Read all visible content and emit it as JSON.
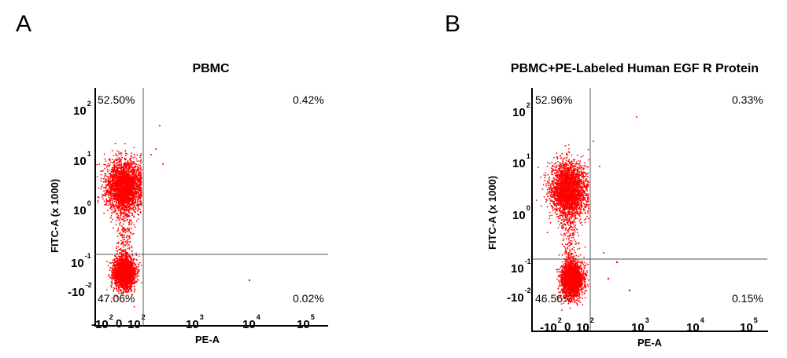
{
  "chart_data": [
    {
      "type": "scatter",
      "panel_label": "A",
      "title": "PBMC",
      "xlabel": "PE-A",
      "ylabel": "FITC-A (x 1000)",
      "xticks": [
        {
          "base": "-10",
          "exp": "2"
        },
        {
          "base": "0",
          "exp": ""
        },
        {
          "base": "10",
          "exp": "2"
        },
        {
          "base": "10",
          "exp": "3"
        },
        {
          "base": "10",
          "exp": "4"
        },
        {
          "base": "10",
          "exp": "5"
        }
      ],
      "yticks": [
        {
          "base": "10",
          "exp": "2"
        },
        {
          "base": "10",
          "exp": "1"
        },
        {
          "base": "10",
          "exp": "0"
        },
        {
          "base": "10",
          "exp": "-1"
        },
        {
          "base": "-10",
          "exp": "-2"
        }
      ],
      "quadrants": {
        "upper_left": "52.50%",
        "upper_right": "0.42%",
        "lower_left": "47.06%",
        "lower_right": "0.02%"
      },
      "gate": {
        "x": 100,
        "y": 0.1
      },
      "populations": [
        {
          "name": "upper-left",
          "fraction": 0.525,
          "x_center": 25,
          "y_center": 2.5
        },
        {
          "name": "lower-left",
          "fraction": 0.4706,
          "x_center": 10,
          "y_center": -0.015
        },
        {
          "name": "upper-right",
          "fraction": 0.0042
        },
        {
          "name": "lower-right",
          "fraction": 0.0002
        }
      ],
      "dot_color": "#ff0000"
    },
    {
      "type": "scatter",
      "panel_label": "B",
      "title": "PBMC+PE-Labeled Human EGF R Protein",
      "xlabel": "PE-A",
      "ylabel": "FITC-A (x 1000)",
      "xticks": [
        {
          "base": "-10",
          "exp": "2"
        },
        {
          "base": "0",
          "exp": ""
        },
        {
          "base": "10",
          "exp": "2"
        },
        {
          "base": "10",
          "exp": "3"
        },
        {
          "base": "10",
          "exp": "4"
        },
        {
          "base": "10",
          "exp": "5"
        }
      ],
      "yticks": [
        {
          "base": "10",
          "exp": "2"
        },
        {
          "base": "10",
          "exp": "1"
        },
        {
          "base": "10",
          "exp": "0"
        },
        {
          "base": "10",
          "exp": "-1"
        },
        {
          "base": "-10",
          "exp": "-2"
        }
      ],
      "quadrants": {
        "upper_left": "52.96%",
        "upper_right": "0.33%",
        "lower_left": "46.56%",
        "lower_right": "0.15%"
      },
      "gate": {
        "x": 100,
        "y": 0.1
      },
      "populations": [
        {
          "name": "upper-left",
          "fraction": 0.5296,
          "x_center": 25,
          "y_center": 2.5
        },
        {
          "name": "lower-left",
          "fraction": 0.4656,
          "x_center": 10,
          "y_center": -0.015
        },
        {
          "name": "upper-right",
          "fraction": 0.0033
        },
        {
          "name": "lower-right",
          "fraction": 0.0015
        }
      ],
      "dot_color": "#ff0000"
    }
  ]
}
